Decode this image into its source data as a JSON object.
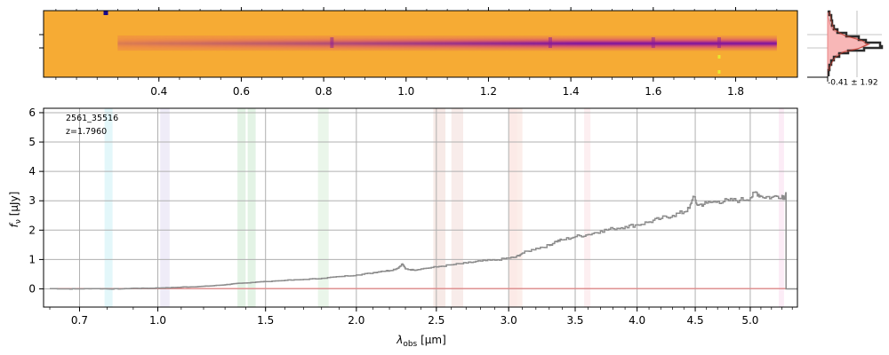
{
  "chart_data": [
    {
      "type": "heatmap",
      "name": "2D spectrum",
      "x_axis": {
        "label": "",
        "xlim": [
          0.12,
          1.95
        ],
        "ticks": [
          0.4,
          0.6,
          0.8,
          1.0,
          1.2,
          1.4,
          1.6,
          1.8
        ]
      },
      "colormap": "plasma",
      "trace_start": 0.3,
      "trace_end": 1.9,
      "trace_strong_from": 1.25,
      "bright_knots": [
        0.82,
        1.35,
        1.6,
        1.76
      ],
      "bad_pixels": [
        {
          "x": 0.27,
          "color": "#1a0a8a"
        },
        {
          "x": 1.76,
          "color": "#e8e830"
        }
      ]
    },
    {
      "type": "histogram",
      "name": "profile",
      "annotation": "-0.41 ± 1.92"
    },
    {
      "type": "line",
      "name": "1D spectrum",
      "title": "",
      "object_id": "2561_35516",
      "redshift_label": "z=1.7960",
      "xlabel": "λobs [μm]",
      "xlabel_main": "λ",
      "xlabel_sub": "obs",
      "xlabel_unit": " [μm]",
      "ylabel": "fν [μJy]",
      "ylabel_main": "f",
      "ylabel_sub": "ν",
      "ylabel_unit": " [μJy]",
      "xscale": "sqrt",
      "xlim": [
        0.58,
        5.45
      ],
      "ylim": [
        -0.62,
        6.15
      ],
      "xticks": [
        0.7,
        1.0,
        1.5,
        2.0,
        2.5,
        3.0,
        3.5,
        4.0,
        4.5,
        5.0
      ],
      "xtick_labels": [
        "0.7",
        "1.0",
        "1.5",
        "2.0",
        "2.5",
        "3.0",
        "3.5",
        "4.0",
        "4.5",
        "5.0"
      ],
      "yticks": [
        0,
        1,
        2,
        3,
        4,
        5,
        6
      ],
      "ytick_labels": [
        "0",
        "1",
        "2",
        "3",
        "4",
        "5",
        "6"
      ],
      "grid": true,
      "emission_bands": [
        {
          "x0": 0.79,
          "x1": 0.82,
          "color": "#7fd9e8"
        },
        {
          "x0": 1.01,
          "x1": 1.05,
          "color": "#b8a8e0"
        },
        {
          "x0": 1.36,
          "x1": 1.4,
          "color": "#7ec88a"
        },
        {
          "x0": 1.41,
          "x1": 1.45,
          "color": "#7ec88a"
        },
        {
          "x0": 1.78,
          "x1": 1.84,
          "color": "#9fd6a0"
        },
        {
          "x0": 2.48,
          "x1": 2.56,
          "color": "#d9a090"
        },
        {
          "x0": 2.6,
          "x1": 2.68,
          "color": "#e0a8a0"
        },
        {
          "x0": 3.0,
          "x1": 3.06,
          "color": "#f0a090"
        },
        {
          "x0": 3.06,
          "x1": 3.1,
          "color": "#f0b0a0"
        },
        {
          "x0": 3.57,
          "x1": 3.62,
          "color": "#f5b8c0"
        },
        {
          "x0": 5.27,
          "x1": 5.32,
          "color": "#f0a8d8"
        }
      ],
      "series": [
        {
          "name": "flux",
          "color": "#8c8c8c",
          "x": [
            0.6,
            0.65,
            0.7,
            0.75,
            0.8,
            0.85,
            0.9,
            0.95,
            1.0,
            1.05,
            1.1,
            1.15,
            1.2,
            1.25,
            1.3,
            1.35,
            1.4,
            1.45,
            1.5,
            1.6,
            1.7,
            1.8,
            1.9,
            2.0,
            2.1,
            2.15,
            2.2,
            2.25,
            2.28,
            2.3,
            2.35,
            2.4,
            2.5,
            2.6,
            2.7,
            2.8,
            2.9,
            3.0,
            3.05,
            3.1,
            3.2,
            3.3,
            3.35,
            3.4,
            3.5,
            3.6,
            3.7,
            3.8,
            3.9,
            4.0,
            4.1,
            4.2,
            4.3,
            4.4,
            4.45,
            4.48,
            4.52,
            4.6,
            4.7,
            4.8,
            4.9,
            5.0,
            5.05,
            5.1,
            5.2,
            5.3,
            5.32,
            5.34
          ],
          "y": [
            0.01,
            0.0,
            0.0,
            0.01,
            0.0,
            0.0,
            0.02,
            0.02,
            0.03,
            0.04,
            0.06,
            0.07,
            0.09,
            0.11,
            0.14,
            0.18,
            0.2,
            0.23,
            0.25,
            0.29,
            0.32,
            0.36,
            0.42,
            0.47,
            0.55,
            0.6,
            0.62,
            0.7,
            0.85,
            0.68,
            0.64,
            0.68,
            0.75,
            0.82,
            0.88,
            0.95,
            0.98,
            1.05,
            1.08,
            1.22,
            1.38,
            1.48,
            1.62,
            1.67,
            1.78,
            1.85,
            1.97,
            2.05,
            2.12,
            2.18,
            2.28,
            2.4,
            2.5,
            2.62,
            2.75,
            3.15,
            2.85,
            2.92,
            2.98,
            3.0,
            3.02,
            3.1,
            3.3,
            3.15,
            3.12,
            3.18,
            3.12,
            3.2
          ],
          "drop_to": 0.0,
          "tail_x": [
            5.34,
            5.45
          ]
        },
        {
          "name": "error",
          "color": "#e88a8a",
          "x": [
            0.6,
            5.34
          ],
          "y": [
            0.01,
            0.01
          ]
        }
      ]
    }
  ]
}
